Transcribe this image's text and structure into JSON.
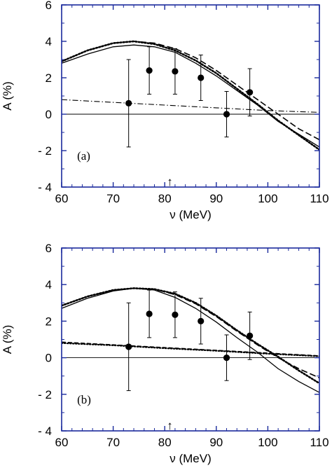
{
  "chart_data": [
    {
      "type": "line",
      "panel_label": "(a)",
      "xlabel": "ν (MeV)",
      "ylabel": "A (%)",
      "xlim": [
        60,
        110
      ],
      "ylim": [
        -4,
        6
      ],
      "x_ticks": [
        "60",
        "70",
        "80",
        "90",
        "100",
        "110"
      ],
      "y_ticks": [
        "- 4",
        "- 2",
        "0",
        "2",
        "4",
        "6"
      ],
      "arrow_marker_x": 81,
      "arrow_marker_label": "↑",
      "data_points": {
        "x": [
          73,
          77,
          82,
          87,
          92,
          96.5
        ],
        "y": [
          0.6,
          2.4,
          2.35,
          2.0,
          0.0,
          1.2
        ],
        "err": [
          2.4,
          1.3,
          1.25,
          1.25,
          1.25,
          1.3
        ]
      },
      "series": [
        {
          "style": "solid",
          "x": [
            60,
            65,
            70,
            74,
            78,
            82,
            86,
            90,
            94,
            98,
            102,
            106,
            110
          ],
          "y": [
            2.8,
            3.3,
            3.7,
            3.8,
            3.7,
            3.4,
            2.8,
            2.1,
            1.3,
            0.5,
            -0.4,
            -1.1,
            -1.8
          ]
        },
        {
          "style": "dashed",
          "x": [
            60,
            65,
            70,
            74,
            78,
            82,
            86,
            90,
            94,
            98,
            102,
            106,
            110
          ],
          "y": [
            2.9,
            3.5,
            3.9,
            4.0,
            3.9,
            3.6,
            3.1,
            2.4,
            1.6,
            0.8,
            0.0,
            -0.8,
            -1.4
          ]
        },
        {
          "style": "dotted",
          "x": [
            60,
            65,
            70,
            74,
            78,
            82,
            86,
            90,
            94,
            98,
            102,
            106,
            110
          ],
          "y": [
            2.9,
            3.5,
            3.9,
            4.0,
            3.85,
            3.5,
            2.95,
            2.25,
            1.4,
            0.55,
            -0.35,
            -1.15,
            -1.95
          ]
        },
        {
          "style": "dashdot",
          "x": [
            60,
            70,
            80,
            90,
            100,
            110
          ],
          "y": [
            0.8,
            0.65,
            0.5,
            0.35,
            0.2,
            0.1
          ]
        },
        {
          "style": "baseline",
          "x": [
            60,
            110
          ],
          "y": [
            0,
            0
          ]
        }
      ]
    },
    {
      "type": "line",
      "panel_label": "(b)",
      "xlabel": "ν (MeV)",
      "ylabel": "A (%)",
      "xlim": [
        60,
        110
      ],
      "ylim": [
        -4,
        6
      ],
      "x_ticks": [
        "60",
        "70",
        "80",
        "90",
        "100",
        "110"
      ],
      "y_ticks": [
        "- 4",
        "- 2",
        "0",
        "2",
        "4",
        "6"
      ],
      "arrow_marker_x": 81,
      "arrow_marker_label": "↑",
      "data_points": {
        "x": [
          73,
          77,
          82,
          87,
          92,
          96.5
        ],
        "y": [
          0.6,
          2.4,
          2.35,
          2.0,
          0.0,
          1.2
        ],
        "err": [
          2.4,
          1.3,
          1.25,
          1.25,
          1.25,
          1.3
        ]
      },
      "series": [
        {
          "style": "solid",
          "x": [
            60,
            65,
            70,
            74,
            78,
            82,
            86,
            90,
            94,
            98,
            102,
            106,
            110
          ],
          "y": [
            2.7,
            3.25,
            3.65,
            3.8,
            3.7,
            3.3,
            2.7,
            1.95,
            1.1,
            0.3,
            -0.6,
            -1.3,
            -1.9
          ]
        },
        {
          "style": "dashed",
          "x": [
            60,
            65,
            70,
            74,
            78,
            82,
            86,
            90,
            94,
            98,
            102,
            106,
            110
          ],
          "y": [
            2.85,
            3.35,
            3.7,
            3.8,
            3.75,
            3.45,
            2.95,
            2.25,
            1.45,
            0.7,
            0.0,
            -0.6,
            -1.1
          ]
        },
        {
          "style": "dotted",
          "x": [
            60,
            65,
            70,
            74,
            78,
            82,
            86,
            90,
            94,
            98,
            102,
            106,
            110
          ],
          "y": [
            2.85,
            3.35,
            3.7,
            3.8,
            3.75,
            3.5,
            3.0,
            2.3,
            1.5,
            0.75,
            0.05,
            -0.7,
            -1.4
          ]
        },
        {
          "style": "dashed-flat",
          "x": [
            60,
            70,
            80,
            90,
            100,
            110
          ],
          "y": [
            0.85,
            0.7,
            0.55,
            0.4,
            0.25,
            0.1
          ]
        },
        {
          "style": "dotted-flat",
          "x": [
            60,
            70,
            80,
            90,
            100,
            110
          ],
          "y": [
            0.8,
            0.68,
            0.52,
            0.38,
            0.22,
            0.08
          ]
        },
        {
          "style": "baseline",
          "x": [
            60,
            110
          ],
          "y": [
            0,
            0
          ]
        }
      ]
    }
  ]
}
